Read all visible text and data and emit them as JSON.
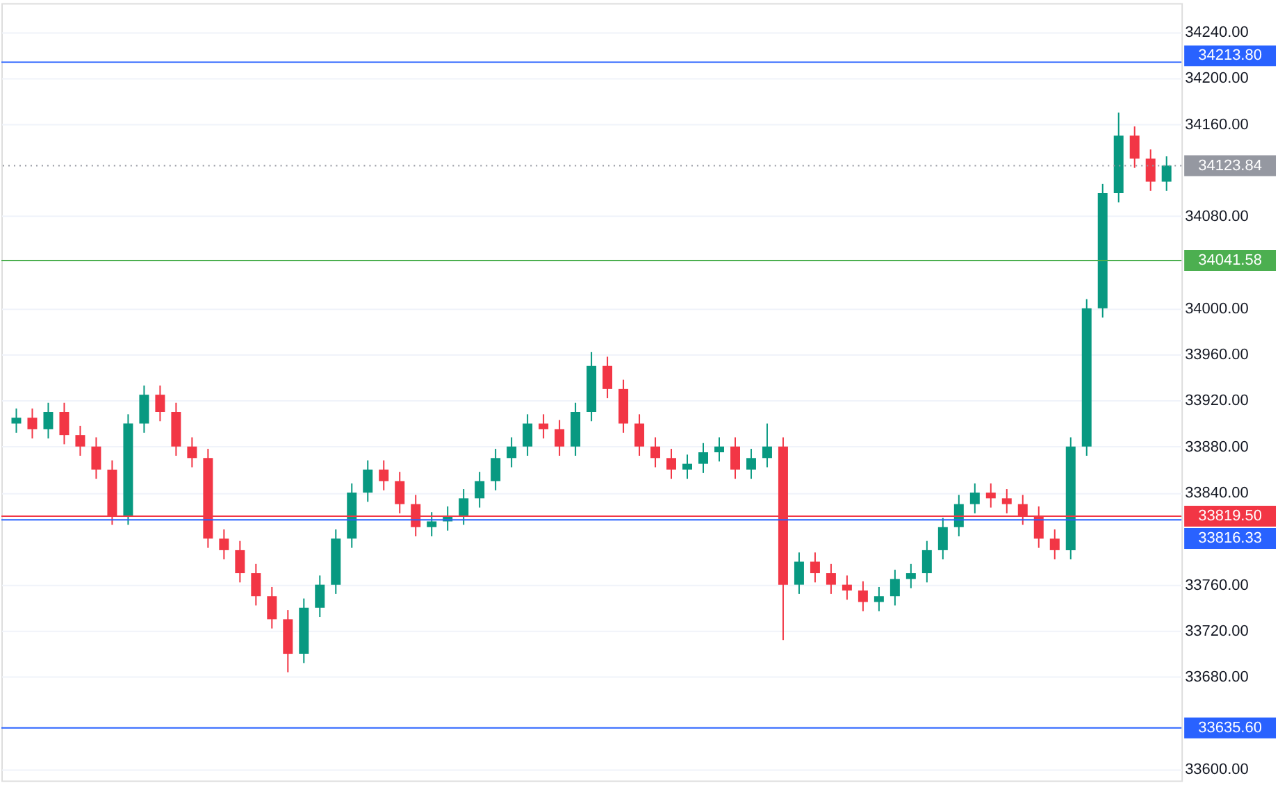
{
  "chart_data": {
    "type": "candlestick",
    "categories": [
      null,
      null,
      null,
      null,
      null,
      null,
      null,
      null,
      null,
      null,
      null,
      null,
      null,
      null,
      null,
      null,
      null,
      null,
      null,
      null,
      null,
      null,
      null,
      null,
      null,
      null,
      null,
      null,
      null,
      null,
      null,
      null,
      null,
      null,
      null,
      null,
      null,
      null,
      null,
      null,
      null,
      null,
      null,
      null,
      null,
      null,
      null,
      null,
      null,
      null,
      null,
      null,
      null,
      null,
      null,
      null,
      null,
      null,
      null,
      null,
      null,
      null,
      null,
      null,
      null,
      null,
      null,
      null,
      null,
      null,
      null,
      null,
      null
    ],
    "ohlc": [
      [
        33900,
        33913,
        33892,
        33905
      ],
      [
        33905,
        33913,
        33887,
        33895
      ],
      [
        33895,
        33918,
        33887,
        33910
      ],
      [
        33910,
        33918,
        33882,
        33890
      ],
      [
        33890,
        33898,
        33872,
        33880
      ],
      [
        33880,
        33888,
        33852,
        33860
      ],
      [
        33860,
        33868,
        33812,
        33820
      ],
      [
        33820,
        33908,
        33812,
        33900
      ],
      [
        33900,
        33933,
        33892,
        33925
      ],
      [
        33925,
        33933,
        33902,
        33910
      ],
      [
        33910,
        33918,
        33872,
        33880
      ],
      [
        33880,
        33888,
        33862,
        33870
      ],
      [
        33870,
        33878,
        33792,
        33800
      ],
      [
        33800,
        33808,
        33782,
        33790
      ],
      [
        33790,
        33798,
        33762,
        33770
      ],
      [
        33770,
        33778,
        33742,
        33750
      ],
      [
        33750,
        33758,
        33722,
        33730
      ],
      [
        33730,
        33738,
        33684,
        33700
      ],
      [
        33700,
        33748,
        33692,
        33740
      ],
      [
        33740,
        33768,
        33732,
        33760
      ],
      [
        33760,
        33808,
        33752,
        33800
      ],
      [
        33800,
        33848,
        33792,
        33840
      ],
      [
        33840,
        33868,
        33832,
        33860
      ],
      [
        33860,
        33868,
        33842,
        33850
      ],
      [
        33850,
        33858,
        33822,
        33830
      ],
      [
        33830,
        33838,
        33802,
        33810
      ],
      [
        33810,
        33823,
        33802,
        33815
      ],
      [
        33815,
        33828,
        33807,
        33820
      ],
      [
        33820,
        33843,
        33812,
        33835
      ],
      [
        33835,
        33858,
        33827,
        33850
      ],
      [
        33850,
        33878,
        33842,
        33870
      ],
      [
        33870,
        33888,
        33862,
        33880
      ],
      [
        33880,
        33908,
        33872,
        33900
      ],
      [
        33900,
        33908,
        33887,
        33895
      ],
      [
        33895,
        33903,
        33872,
        33880
      ],
      [
        33880,
        33918,
        33872,
        33910
      ],
      [
        33910,
        33962,
        33902,
        33950
      ],
      [
        33950,
        33958,
        33922,
        33930
      ],
      [
        33930,
        33938,
        33892,
        33900
      ],
      [
        33900,
        33908,
        33872,
        33880
      ],
      [
        33880,
        33888,
        33862,
        33870
      ],
      [
        33870,
        33878,
        33852,
        33860
      ],
      [
        33860,
        33873,
        33852,
        33865
      ],
      [
        33865,
        33883,
        33857,
        33875
      ],
      [
        33875,
        33888,
        33867,
        33880
      ],
      [
        33880,
        33888,
        33852,
        33860
      ],
      [
        33860,
        33878,
        33852,
        33870
      ],
      [
        33870,
        33900,
        33862,
        33880
      ],
      [
        33880,
        33888,
        33712,
        33760
      ],
      [
        33760,
        33788,
        33752,
        33780
      ],
      [
        33780,
        33788,
        33762,
        33770
      ],
      [
        33770,
        33778,
        33752,
        33760
      ],
      [
        33760,
        33768,
        33747,
        33755
      ],
      [
        33755,
        33763,
        33737,
        33745
      ],
      [
        33745,
        33758,
        33737,
        33750
      ],
      [
        33750,
        33773,
        33742,
        33765
      ],
      [
        33765,
        33778,
        33757,
        33770
      ],
      [
        33770,
        33798,
        33762,
        33790
      ],
      [
        33790,
        33818,
        33782,
        33810
      ],
      [
        33810,
        33838,
        33802,
        33830
      ],
      [
        33830,
        33848,
        33822,
        33840
      ],
      [
        33840,
        33848,
        33827,
        33835
      ],
      [
        33835,
        33843,
        33822,
        33830
      ],
      [
        33830,
        33838,
        33812,
        33820
      ],
      [
        33820,
        33828,
        33792,
        33800
      ],
      [
        33800,
        33808,
        33782,
        33790
      ],
      [
        33790,
        33888,
        33782,
        33880
      ],
      [
        33880,
        34008,
        33872,
        34000
      ],
      [
        34000,
        34108,
        33992,
        34100
      ],
      [
        34100,
        34170,
        34092,
        34150
      ],
      [
        34150,
        34158,
        34122,
        34130
      ],
      [
        34130,
        34138,
        34102,
        34110
      ],
      [
        34110,
        34132,
        34102,
        34124
      ]
    ],
    "colors": [
      "#089981",
      "#f23645",
      "#089981",
      "#f23645",
      "#f23645",
      "#f23645",
      "#f23645",
      "#089981",
      "#089981",
      "#f23645",
      "#f23645",
      "#f23645",
      "#f23645",
      "#f23645",
      "#f23645",
      "#f23645",
      "#f23645",
      "#f23645",
      "#089981",
      "#089981",
      "#089981",
      "#089981",
      "#089981",
      "#f23645",
      "#f23645",
      "#f23645",
      "#089981",
      "#089981",
      "#089981",
      "#089981",
      "#089981",
      "#089981",
      "#089981",
      "#f23645",
      "#f23645",
      "#089981",
      "#089981",
      "#f23645",
      "#f23645",
      "#f23645",
      "#f23645",
      "#f23645",
      "#089981",
      "#089981",
      "#089981",
      "#f23645",
      "#089981",
      "#089981",
      "#f23645",
      "#089981",
      "#f23645",
      "#f23645",
      "#f23645",
      "#f23645",
      "#089981",
      "#089981",
      "#089981",
      "#089981",
      "#089981",
      "#089981",
      "#089981",
      "#f23645",
      "#f23645",
      "#f23645",
      "#f23645",
      "#f23645",
      "#089981",
      "#089981",
      "#089981",
      "#089981",
      "#f23645",
      "#f23645",
      "#089981"
    ],
    "ylim": [
      33590,
      34265
    ],
    "yticks": [
      {
        "value": 33600,
        "label": "33600.00"
      },
      {
        "value": 33680,
        "label": "33680.00"
      },
      {
        "value": 33720,
        "label": "33720.00"
      },
      {
        "value": 33760,
        "label": "33760.00"
      },
      {
        "value": 33840,
        "label": "33840.00"
      },
      {
        "value": 33880,
        "label": "33880.00"
      },
      {
        "value": 33920,
        "label": "33920.00"
      },
      {
        "value": 33960,
        "label": "33960.00"
      },
      {
        "value": 34000,
        "label": "34000.00"
      },
      {
        "value": 34080,
        "label": "34080.00"
      },
      {
        "value": 34160,
        "label": "34160.00"
      },
      {
        "value": 34200,
        "label": "34200.00"
      },
      {
        "value": 34240,
        "label": "34240.00"
      }
    ],
    "ref_lines": [
      {
        "axis": "y",
        "value": 34213.8,
        "label": "34213.80",
        "color": "#2962ff",
        "line_style": "solid"
      },
      {
        "axis": "y",
        "value": 34123.84,
        "label": "34123.84",
        "color": "#9598a1",
        "line_style": "dotted"
      },
      {
        "axis": "y",
        "value": 34041.58,
        "label": "34041.58",
        "color": "#4caf50",
        "line_style": "solid"
      },
      {
        "axis": "y",
        "value": 33819.5,
        "label": "33819.50",
        "color": "#f23645",
        "line_style": "solid"
      },
      {
        "axis": "y",
        "value": 33816.33,
        "label": "33816.33",
        "color": "#2962ff",
        "line_style": "solid"
      },
      {
        "axis": "y",
        "value": 33635.6,
        "label": "33635.60",
        "color": "#2962ff",
        "line_style": "solid"
      }
    ],
    "grid": "y",
    "tick_labels": "y"
  }
}
